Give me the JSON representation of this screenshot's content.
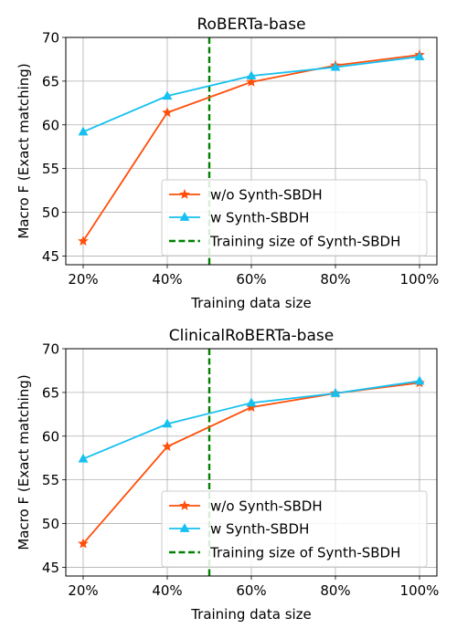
{
  "chart_data": [
    {
      "type": "line",
      "title": "RoBERTa-base",
      "xlabel": "Training data size",
      "ylabel": "Macro F (Exact matching)",
      "categories": [
        "20%",
        "40%",
        "60%",
        "80%",
        "100%"
      ],
      "ylim": [
        44,
        70
      ],
      "yticks": [
        45,
        50,
        55,
        60,
        65,
        70
      ],
      "grid": true,
      "legend_position": "lower-right",
      "series": [
        {
          "name": "w/o Synth-SBDH",
          "values": [
            46.7,
            61.4,
            64.9,
            66.8,
            68.0
          ],
          "color": "#ff4f0a",
          "marker": "star"
        },
        {
          "name": "w Synth-SBDH",
          "values": [
            59.2,
            63.3,
            65.6,
            66.6,
            67.8
          ],
          "color": "#16c0f0",
          "marker": "triangle"
        }
      ],
      "reference_line": {
        "name": "Training size of Synth-SBDH",
        "x": "50%",
        "color": "#008000",
        "style": "dashed"
      }
    },
    {
      "type": "line",
      "title": "ClinicalRoBERTa-base",
      "xlabel": "Training data size",
      "ylabel": "Macro F (Exact matching)",
      "categories": [
        "20%",
        "40%",
        "60%",
        "80%",
        "100%"
      ],
      "ylim": [
        44,
        70
      ],
      "yticks": [
        45,
        50,
        55,
        60,
        65,
        70
      ],
      "grid": true,
      "legend_position": "lower-right",
      "series": [
        {
          "name": "w/o Synth-SBDH",
          "values": [
            47.7,
            58.8,
            63.3,
            64.9,
            66.1
          ],
          "color": "#ff4f0a",
          "marker": "star"
        },
        {
          "name": "w Synth-SBDH",
          "values": [
            57.4,
            61.4,
            63.8,
            64.9,
            66.3
          ],
          "color": "#16c0f0",
          "marker": "triangle"
        }
      ],
      "reference_line": {
        "name": "Training size of Synth-SBDH",
        "x": "50%",
        "color": "#008000",
        "style": "dashed"
      }
    }
  ]
}
